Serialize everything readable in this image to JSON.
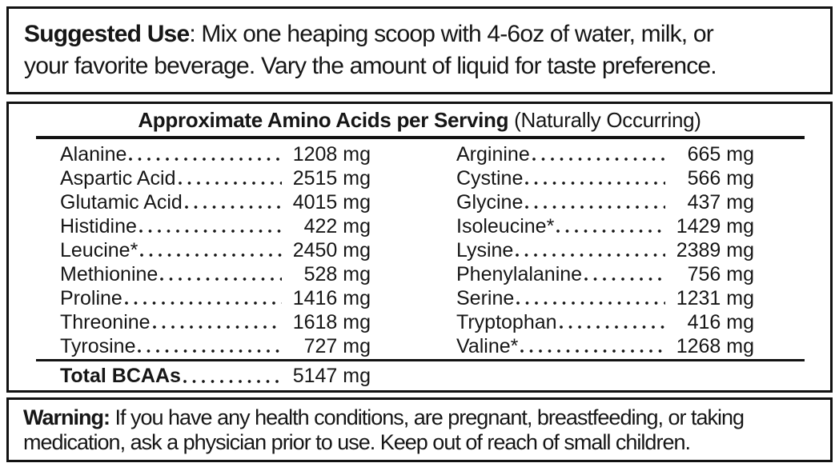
{
  "colors": {
    "ink": "#161616",
    "border": "#121212",
    "background": "#ffffff"
  },
  "suggested_use": {
    "label": "Suggested Use",
    "line1": ": Mix one heaping scoop with 4-6oz of water, milk, or",
    "line2": "your favorite beverage. Vary the amount of liquid for taste preference."
  },
  "amino_table": {
    "title_bold": "Approximate Amino Acids per Serving",
    "title_regular": " (Naturally Occurring)",
    "left_rows": [
      {
        "name": "Alanine",
        "value": "1208 mg"
      },
      {
        "name": "Aspartic Acid",
        "value": "2515 mg"
      },
      {
        "name": "Glutamic Acid",
        "value": "4015 mg"
      },
      {
        "name": "Histidine",
        "value": "422 mg"
      },
      {
        "name": "Leucine*",
        "value": "2450 mg"
      },
      {
        "name": "Methionine",
        "value": "528 mg"
      },
      {
        "name": "Proline",
        "value": "1416 mg"
      },
      {
        "name": "Threonine",
        "value": "1618 mg"
      },
      {
        "name": "Tyrosine",
        "value": "727 mg"
      }
    ],
    "right_rows": [
      {
        "name": "Arginine",
        "value": "665 mg"
      },
      {
        "name": "Cystine",
        "value": "566 mg"
      },
      {
        "name": "Glycine",
        "value": "437 mg"
      },
      {
        "name": "Isoleucine*",
        "value": "1429 mg"
      },
      {
        "name": "Lysine",
        "value": "2389 mg"
      },
      {
        "name": "Phenylalanine",
        "value": "756 mg"
      },
      {
        "name": "Serine",
        "value": "1231 mg"
      },
      {
        "name": "Tryptophan",
        "value": "416 mg"
      },
      {
        "name": "Valine*",
        "value": "1268 mg"
      }
    ],
    "total": {
      "label": "Total BCAAs",
      "value": "5147 mg"
    }
  },
  "warning": {
    "label": "Warning:",
    "line1": " If you have any health conditions, are pregnant, breastfeeding, or taking",
    "line2": "medication, ask a physician prior to use. Keep out of reach of small children."
  }
}
